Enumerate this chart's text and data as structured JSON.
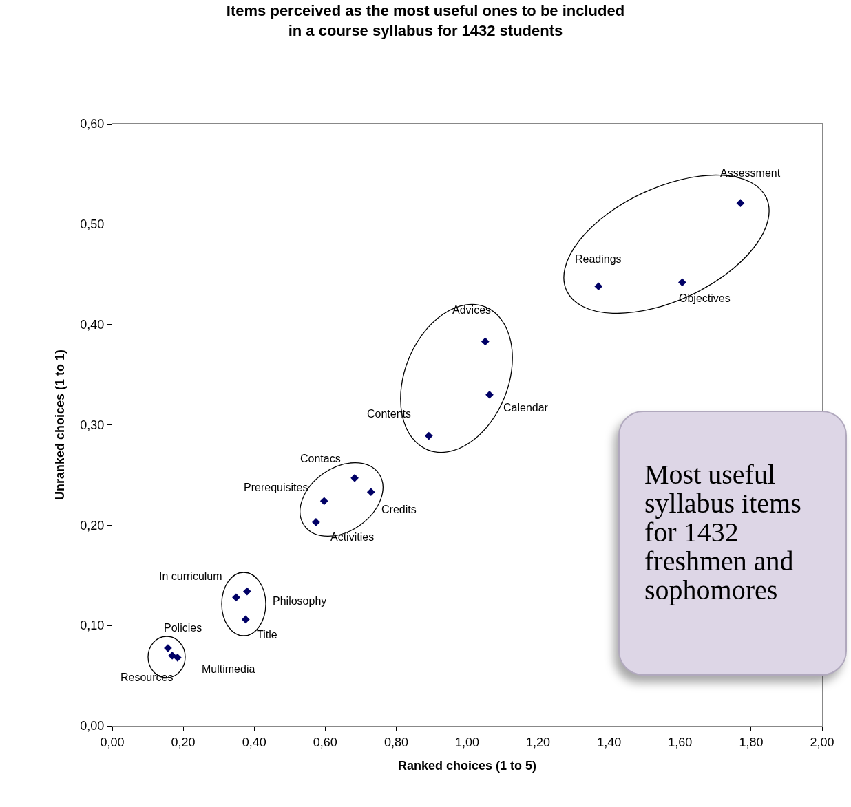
{
  "chart_data": {
    "type": "scatter",
    "title": "Items perceived as the most useful ones to be included\nin a course syllabus for 1432 students",
    "xlabel": "Ranked choices (1 to 5)",
    "ylabel": "Unranked choices (1 to 1)",
    "x": [
      1.77,
      1.37,
      1.606,
      1.051,
      1.063,
      0.892,
      0.683,
      0.729,
      0.597,
      0.574,
      0.349,
      0.38,
      0.376,
      0.157,
      0.169,
      0.184
    ],
    "series": [
      {
        "color": "#000066",
        "values": [
          0.521,
          0.438,
          0.442,
          0.383,
          0.33,
          0.289,
          0.247,
          0.233,
          0.224,
          0.203,
          0.128,
          0.134,
          0.106,
          0.0775,
          0.07,
          0.068
        ]
      }
    ],
    "marker": "diamond",
    "grid": false,
    "xlim": [
      0,
      2
    ],
    "ylim": [
      0,
      0.6
    ],
    "xticks": [
      {
        "value": 0,
        "label": "0,00"
      },
      {
        "value": 0.2,
        "label": "0,20"
      },
      {
        "value": 0.4,
        "label": "0,40"
      },
      {
        "value": 0.6,
        "label": "0,60"
      },
      {
        "value": 0.8,
        "label": "0,80"
      },
      {
        "value": 1,
        "label": "1,00"
      },
      {
        "value": 1.2,
        "label": "1,20"
      },
      {
        "value": 1.4,
        "label": "1,40"
      },
      {
        "value": 1.6,
        "label": "1,60"
      },
      {
        "value": 1.8,
        "label": "1,80"
      },
      {
        "value": 2,
        "label": "2,00"
      }
    ],
    "yticks": [
      {
        "value": 0,
        "label": "0,00"
      },
      {
        "value": 0.1,
        "label": "0,10"
      },
      {
        "value": 0.2,
        "label": "0,20"
      },
      {
        "value": 0.3,
        "label": "0,30"
      },
      {
        "value": 0.4,
        "label": "0,40"
      },
      {
        "value": 0.5,
        "label": "0,50"
      },
      {
        "value": 0.6,
        "label": "0,60"
      }
    ],
    "annotations": [
      {
        "text": "Assessment",
        "x": 1.77,
        "y": 0.521
      },
      {
        "text": "Readings",
        "x": 1.37,
        "y": 0.438
      },
      {
        "text": "Objectives",
        "x": 1.606,
        "y": 0.442
      },
      {
        "text": "Advices",
        "x": 1.051,
        "y": 0.383
      },
      {
        "text": "Calendar",
        "x": 1.063,
        "y": 0.33
      },
      {
        "text": "Contents",
        "x": 0.892,
        "y": 0.289
      },
      {
        "text": "Contacs",
        "x": 0.683,
        "y": 0.247
      },
      {
        "text": "Credits",
        "x": 0.729,
        "y": 0.233
      },
      {
        "text": "Prerequisites",
        "x": 0.597,
        "y": 0.224
      },
      {
        "text": "Activities",
        "x": 0.574,
        "y": 0.203
      },
      {
        "text": "In curriculum",
        "x": 0.349,
        "y": 0.128
      },
      {
        "text": "Philosophy",
        "x": 0.38,
        "y": 0.134
      },
      {
        "text": "Title",
        "x": 0.376,
        "y": 0.106
      },
      {
        "text": "Policies",
        "x": 0.157,
        "y": 0.0775
      },
      {
        "text": "Resources",
        "x": 0.169,
        "y": 0.07
      },
      {
        "text": "Multimedia",
        "x": 0.184,
        "y": 0.068
      },
      "Most useful syllabus items for 1432 freshmen and sophomores"
    ]
  }
}
